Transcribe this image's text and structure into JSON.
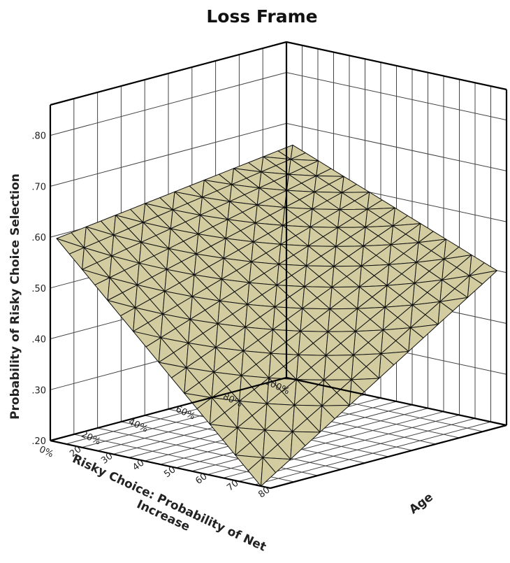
{
  "chart_data": {
    "type": "surface",
    "title": "Loss Frame",
    "zlabel": "Probability of Risky Choice Selection",
    "xlabel": "Risky Choice: Probability of Net Increase",
    "ylabel": "Age",
    "x_ticks": [
      "100%",
      "80%",
      "60%",
      "40%",
      "20%",
      "0%"
    ],
    "y_ticks": [
      "80",
      "70",
      "60",
      "50",
      "40",
      "30",
      "20"
    ],
    "z_ticks": [
      ".20",
      ".30",
      ".40",
      ".50",
      ".60",
      ".70",
      ".80"
    ],
    "xlim": [
      0,
      100
    ],
    "ylim": [
      15,
      85
    ],
    "zlim": [
      0.2,
      0.86
    ],
    "grid": true,
    "surface": {
      "probability_range": [
        0,
        100
      ],
      "age_range": [
        17,
        82
      ],
      "corners": [
        {
          "probability": 100,
          "age": 82,
          "value": 0.5
        },
        {
          "probability": 100,
          "age": 17,
          "value": 0.66
        },
        {
          "probability": 0,
          "age": 82,
          "value": 0.2
        },
        {
          "probability": 0,
          "age": 17,
          "value": 0.6
        }
      ],
      "mesh_divisions": 16
    }
  }
}
